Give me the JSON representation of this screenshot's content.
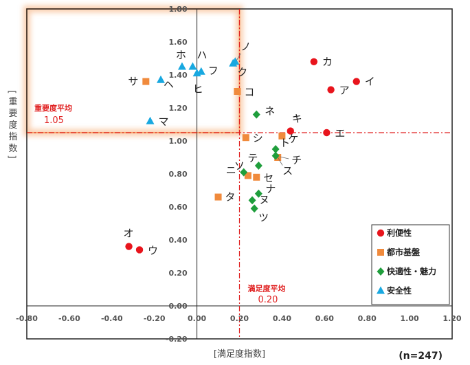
{
  "chart_data": {
    "type": "scatter",
    "xlabel": "[満足度指数]",
    "ylabel": "[重要度指数]",
    "xlim": [
      -0.8,
      1.2
    ],
    "ylim": [
      -0.2,
      1.8
    ],
    "xticks": [
      "-0.80",
      "-0.60",
      "-0.40",
      "-0.20",
      "0.00",
      "0.20",
      "0.40",
      "0.60",
      "0.80",
      "1.00",
      "1.20"
    ],
    "yticks": [
      "-0.20",
      "0.00",
      "0.20",
      "0.40",
      "0.60",
      "0.80",
      "1.00",
      "1.20",
      "1.40",
      "1.60",
      "1.80"
    ],
    "note": "(n=247)",
    "avg_x": {
      "label": "満足度平均",
      "value": 0.2,
      "value_text": "0.20"
    },
    "avg_y": {
      "label": "重要度平均",
      "value": 1.05,
      "value_text": "1.05"
    },
    "legend_position": "bottom-right",
    "series": [
      {
        "name": "利便性",
        "marker": "circle",
        "color": "#e8141c",
        "points": [
          {
            "label": "カ",
            "x": 0.55,
            "y": 1.48
          },
          {
            "label": "イ",
            "x": 0.75,
            "y": 1.36
          },
          {
            "label": "ア",
            "x": 0.63,
            "y": 1.31
          },
          {
            "label": "エ",
            "x": 0.61,
            "y": 1.05
          },
          {
            "label": "キ",
            "x": 0.44,
            "y": 1.06
          },
          {
            "label": "オ",
            "x": -0.32,
            "y": 0.36
          },
          {
            "label": "ウ",
            "x": -0.27,
            "y": 0.34
          }
        ]
      },
      {
        "name": "都市基盤",
        "marker": "square",
        "color": "#f08a3c",
        "points": [
          {
            "label": "サ",
            "x": -0.24,
            "y": 1.36
          },
          {
            "label": "コ",
            "x": 0.19,
            "y": 1.3
          },
          {
            "label": "ケ",
            "x": 0.4,
            "y": 1.03
          },
          {
            "label": "シ",
            "x": 0.23,
            "y": 1.02
          },
          {
            "label": "チ",
            "x": 0.38,
            "y": 0.9
          },
          {
            "label": "ソ",
            "x": 0.24,
            "y": 0.79
          },
          {
            "label": "セ",
            "x": 0.28,
            "y": 0.78
          },
          {
            "label": "タ",
            "x": 0.1,
            "y": 0.66
          }
        ]
      },
      {
        "name": "快適性・魅力",
        "marker": "diamond",
        "color": "#1f9e3c",
        "points": [
          {
            "label": "ネ",
            "x": 0.28,
            "y": 1.16
          },
          {
            "label": "ト",
            "x": 0.37,
            "y": 0.95
          },
          {
            "label": "ス",
            "x": 0.37,
            "y": 0.91
          },
          {
            "label": "テ",
            "x": 0.29,
            "y": 0.85
          },
          {
            "label": "ニ",
            "x": 0.22,
            "y": 0.81
          },
          {
            "label": "ナ",
            "x": 0.29,
            "y": 0.68
          },
          {
            "label": "ヌ",
            "x": 0.26,
            "y": 0.64
          },
          {
            "label": "ツ",
            "x": 0.27,
            "y": 0.59
          }
        ]
      },
      {
        "name": "安全性",
        "marker": "triangle",
        "color": "#18a8e0",
        "points": [
          {
            "label": "ホ",
            "x": -0.07,
            "y": 1.45
          },
          {
            "label": "ハ",
            "x": -0.02,
            "y": 1.45
          },
          {
            "label": "フ",
            "x": 0.02,
            "y": 1.42
          },
          {
            "label": "ヒ",
            "x": 0.0,
            "y": 1.41
          },
          {
            "label": "ヘ",
            "x": -0.17,
            "y": 1.37
          },
          {
            "label": "マ",
            "x": -0.22,
            "y": 1.12
          },
          {
            "label": "ノ",
            "x": 0.18,
            "y": 1.48
          },
          {
            "label": "ク",
            "x": 0.17,
            "y": 1.47
          }
        ]
      }
    ]
  },
  "colors": {
    "avg_line": "#e02020",
    "highlight": "#f5a56a",
    "axis": "#222222",
    "grid": "#bbbbbb"
  }
}
